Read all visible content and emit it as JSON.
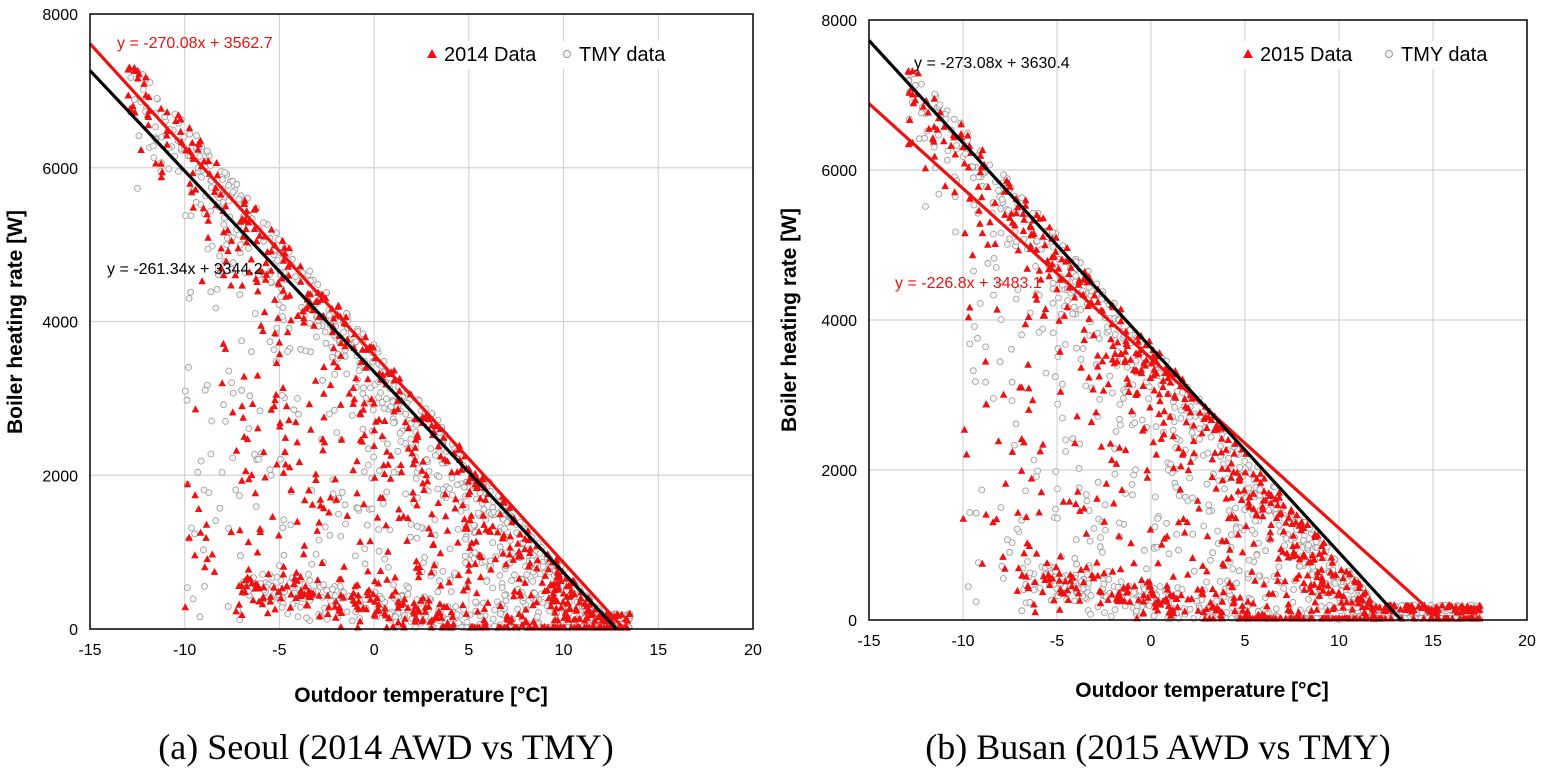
{
  "chart_data": [
    {
      "type": "scatter",
      "caption": "(a) Seoul (2014 AWD vs TMY)",
      "xlabel": "Outdoor temperature [°C]",
      "ylabel": "Boiler heating rate [W]",
      "xlim": [
        -15,
        20
      ],
      "ylim": [
        0,
        8000
      ],
      "xticks": [
        -15,
        -10,
        -5,
        0,
        5,
        10,
        15,
        20
      ],
      "yticks": [
        0,
        2000,
        4000,
        6000,
        8000
      ],
      "grid": true,
      "legend_position": "top-right",
      "series": [
        {
          "name": "2014 Data",
          "marker": "triangle",
          "color": "#ee1111",
          "trend": {
            "slope": -270.08,
            "intercept": 3562.7,
            "label": "y = -270.08x + 3562.7",
            "color": "#ee1111",
            "x_range": [
              -15,
              13.2
            ]
          }
        },
        {
          "name": "TMY data",
          "marker": "circle",
          "color": "#9a9a9a",
          "trend": {
            "slope": -261.34,
            "intercept": 3344.2,
            "label": "y = -261.34x + 3344.2",
            "color": "#000000",
            "x_range": [
              -15,
              12.8
            ]
          }
        }
      ]
    },
    {
      "type": "scatter",
      "caption": "(b) Busan (2015 AWD vs TMY)",
      "xlabel": "Outdoor temperature [°C]",
      "ylabel": "Boiler heating rate [W]",
      "xlim": [
        -15,
        20
      ],
      "ylim": [
        0,
        8000
      ],
      "xticks": [
        -15,
        -10,
        -5,
        0,
        5,
        10,
        15,
        20
      ],
      "yticks": [
        0,
        2000,
        4000,
        6000,
        8000
      ],
      "grid": true,
      "legend_position": "top-right",
      "series": [
        {
          "name": "2015 Data",
          "marker": "triangle",
          "color": "#ee1111",
          "trend": {
            "slope": -226.8,
            "intercept": 3483.1,
            "label": "y = -226.8x + 3483.1",
            "color": "#ee1111",
            "x_range": [
              -15,
              15.4
            ]
          }
        },
        {
          "name": "TMY data",
          "marker": "circle",
          "color": "#9a9a9a",
          "trend": {
            "slope": -273.08,
            "intercept": 3630.4,
            "label": "y = -273.08x + 3630.4",
            "color": "#000000",
            "x_range": [
              -15,
              13.3
            ]
          }
        }
      ]
    }
  ]
}
